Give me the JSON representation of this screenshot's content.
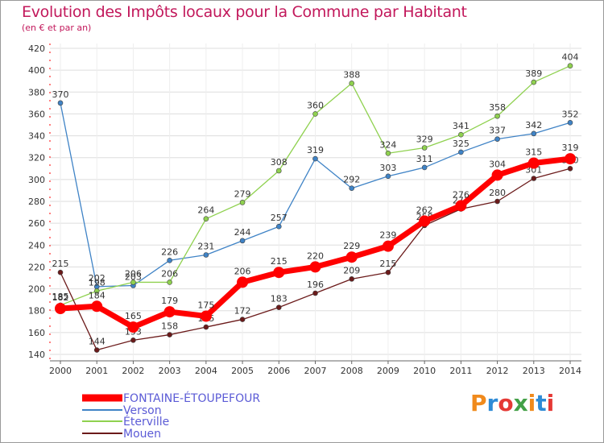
{
  "header": {
    "title": "Evolution des Impôts locaux pour la Commune par Habitant",
    "subtitle": "(en € et par an)"
  },
  "logo": {
    "text": "Proxiti"
  },
  "chart_data": {
    "type": "line",
    "title": "Evolution des Impôts locaux pour la Commune par Habitant",
    "subtitle": "(en € et par an)",
    "xlabel": "",
    "ylabel": "",
    "categories": [
      "2000",
      "2001",
      "2002",
      "2003",
      "2004",
      "2005",
      "2006",
      "2007",
      "2008",
      "2009",
      "2010",
      "2011",
      "2012",
      "2013",
      "2014"
    ],
    "ylim": [
      140,
      420
    ],
    "yticks": [
      140,
      160,
      180,
      200,
      220,
      240,
      260,
      280,
      300,
      320,
      340,
      360,
      380,
      400,
      420
    ],
    "grid": true,
    "legend_position": "bottom-left",
    "series": [
      {
        "name": "FONTAINE-ÉTOUPEFOUR",
        "color": "#ff0000",
        "values": [
          182,
          184,
          165,
          179,
          175,
          206,
          215,
          220,
          229,
          239,
          262,
          276,
          304,
          315,
          319
        ]
      },
      {
        "name": "Verson",
        "color": "#3f83c6",
        "values": [
          370,
          202,
          203,
          226,
          231,
          244,
          257,
          319,
          292,
          303,
          311,
          325,
          337,
          342,
          352
        ]
      },
      {
        "name": "Éterville",
        "color": "#8fd14f",
        "values": [
          185,
          198,
          206,
          206,
          264,
          279,
          308,
          360,
          388,
          324,
          329,
          341,
          358,
          389,
          404
        ]
      },
      {
        "name": "Mouen",
        "color": "#6b1a1a",
        "values": [
          215,
          144,
          153,
          158,
          165,
          172,
          183,
          196,
          209,
          215,
          258,
          273,
          280,
          301,
          310
        ]
      }
    ]
  }
}
